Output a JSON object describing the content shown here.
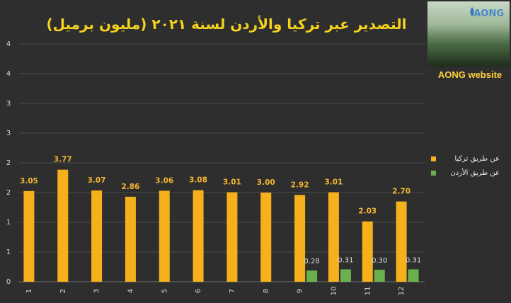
{
  "title": "التصدير عبر تركيا والأردن لسنة ٢٠٢١ (مليون برميل)",
  "logo": {
    "word": "AONG",
    "caption": "AONG website"
  },
  "colors": {
    "background": "#2e2e2e",
    "turkey": "#f5b01c",
    "jordan": "#6ab04c",
    "gridline": "#4a4a4a",
    "axis_text": "#d8d8d8"
  },
  "chart_data": {
    "type": "bar",
    "categories": [
      "1",
      "2",
      "3",
      "4",
      "5",
      "6",
      "7",
      "8",
      "9",
      "10",
      "11",
      "12"
    ],
    "series": [
      {
        "name": "عن طريق تركيا",
        "values": [
          3.05,
          3.77,
          3.07,
          2.86,
          3.06,
          3.08,
          3.01,
          3.0,
          2.92,
          3.01,
          2.03,
          2.7
        ],
        "labels": [
          "3.05",
          "3.77",
          "3.07",
          "2.86",
          "3.06",
          "3.08",
          "3.01",
          "3.00",
          "2.92",
          "3.01",
          "2.03",
          "2.70"
        ]
      },
      {
        "name": "عن طريق الأردن",
        "values": [
          null,
          null,
          null,
          null,
          null,
          null,
          null,
          null,
          0.28,
          0.31,
          0.3,
          0.31
        ],
        "labels": [
          "",
          "",
          "",
          "",
          "",
          "",
          "",
          "",
          "0.28",
          "0.31",
          "0.30",
          "0.31"
        ]
      }
    ],
    "yticks": [
      "0",
      "1",
      "1",
      "2",
      "2",
      "3",
      "3",
      "4",
      "4"
    ],
    "xlabel": "",
    "ylabel": "",
    "grid": true,
    "legend_position": "right"
  }
}
